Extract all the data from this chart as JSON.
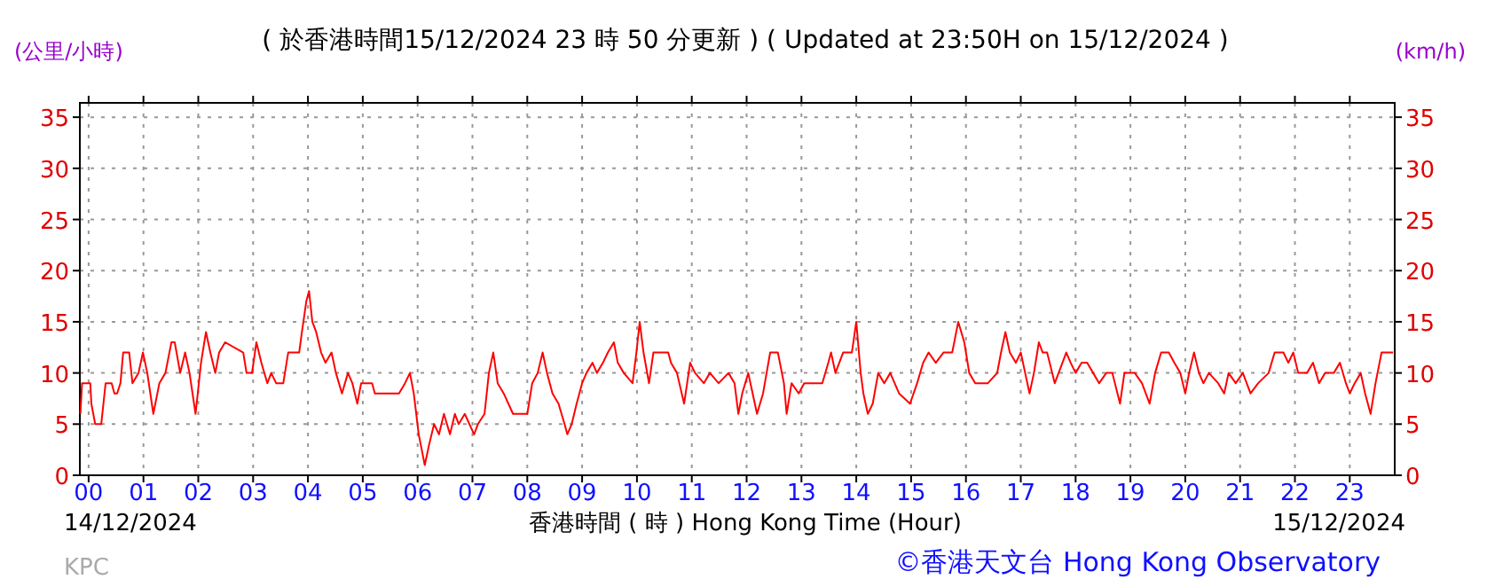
{
  "chart_data": {
    "type": "line",
    "title": "( 於香港時間15/12/2024 23 時 50 分更新 ) ( Updated at 23:50H on 15/12/2024 )",
    "xlabel": "香港時間 ( 時 ) Hong Kong Time (Hour)",
    "ylabel": "(公里/小時)",
    "y2label": "(km/h)",
    "annotations": [
      "14/12/2024",
      "15/12/2024",
      "KPC",
      "©香港天文台 Hong Kong Observatory"
    ],
    "color": "#ff0000",
    "x": [
      -0.15,
      -0.12,
      0.03,
      0.05,
      0.12,
      0.23,
      0.27,
      0.31,
      0.42,
      0.47,
      0.52,
      0.58,
      0.63,
      0.74,
      0.8,
      0.91,
      0.99,
      1.07,
      1.18,
      1.29,
      1.4,
      1.51,
      1.57,
      1.67,
      1.76,
      1.84,
      1.95,
      2.05,
      2.14,
      2.22,
      2.31,
      2.38,
      2.49,
      2.82,
      2.88,
      2.98,
      3.06,
      3.15,
      3.26,
      3.33,
      3.42,
      3.55,
      3.64,
      3.77,
      3.84,
      3.89,
      3.97,
      4.02,
      4.08,
      4.15,
      4.24,
      4.32,
      4.43,
      4.51,
      4.62,
      4.73,
      4.81,
      4.9,
      4.97,
      5.17,
      5.22,
      5.66,
      5.77,
      5.86,
      5.93,
      6.02,
      6.13,
      6.21,
      6.3,
      6.39,
      6.48,
      6.59,
      6.68,
      6.75,
      6.86,
      7.03,
      7.1,
      7.22,
      7.3,
      7.38,
      7.46,
      7.57,
      7.74,
      8.0,
      8.09,
      8.19,
      8.28,
      8.36,
      8.46,
      8.57,
      8.68,
      8.73,
      8.81,
      8.9,
      9.0,
      9.08,
      9.19,
      9.27,
      9.38,
      9.47,
      9.58,
      9.65,
      9.76,
      9.92,
      9.99,
      10.05,
      10.12,
      10.22,
      10.3,
      10.57,
      10.62,
      10.73,
      10.86,
      10.97,
      11.06,
      11.22,
      11.33,
      11.49,
      11.67,
      11.78,
      11.85,
      11.92,
      12.03,
      12.11,
      12.19,
      12.3,
      12.43,
      12.57,
      12.68,
      12.73,
      12.82,
      12.95,
      13.05,
      13.38,
      13.49,
      13.54,
      13.62,
      13.76,
      13.92,
      14.0,
      14.08,
      14.13,
      14.21,
      14.3,
      14.4,
      14.51,
      14.62,
      14.78,
      14.98,
      15.11,
      15.22,
      15.32,
      15.45,
      15.59,
      15.75,
      15.86,
      15.97,
      16.06,
      16.17,
      16.4,
      16.57,
      16.64,
      16.72,
      16.8,
      16.91,
      17.0,
      17.08,
      17.16,
      17.24,
      17.33,
      17.4,
      17.48,
      17.62,
      17.76,
      17.83,
      17.91,
      18.0,
      18.11,
      18.21,
      18.32,
      18.43,
      18.56,
      18.67,
      18.81,
      18.89,
      19.0,
      19.08,
      19.21,
      19.35,
      19.45,
      19.56,
      19.7,
      19.8,
      19.91,
      20.0,
      20.07,
      20.16,
      20.25,
      20.33,
      20.43,
      20.6,
      20.71,
      20.79,
      20.92,
      21.05,
      21.19,
      21.33,
      21.52,
      21.63,
      21.79,
      21.88,
      21.97,
      22.06,
      22.22,
      22.33,
      22.44,
      22.55,
      22.71,
      22.82,
      22.93,
      23.0,
      23.09,
      23.2,
      23.28,
      23.38,
      23.47,
      23.58,
      23.79
    ],
    "values": [
      6,
      9,
      9,
      7,
      5,
      5,
      7,
      9,
      9,
      8,
      8,
      9,
      12,
      12,
      9,
      10,
      12,
      10,
      6,
      9,
      10,
      13,
      13,
      10,
      12,
      10,
      6,
      11,
      14,
      12,
      10,
      12,
      13,
      12,
      10,
      10,
      13,
      11,
      9,
      10,
      9,
      9,
      12,
      12,
      12,
      14,
      17,
      18,
      15,
      14,
      12,
      11,
      12,
      10,
      8,
      10,
      9,
      7,
      9,
      9,
      8,
      8,
      9,
      10,
      8,
      4,
      1,
      3,
      5,
      4,
      6,
      4,
      6,
      5,
      6,
      4,
      5,
      6,
      10,
      12,
      9,
      8,
      6,
      6,
      9,
      10,
      12,
      10,
      8,
      7,
      5,
      4,
      5,
      7,
      9,
      10,
      11,
      10,
      11,
      12,
      13,
      11,
      10,
      9,
      12,
      15,
      12,
      9,
      12,
      12,
      11,
      10,
      7,
      11,
      10,
      9,
      10,
      9,
      10,
      9,
      6,
      8,
      10,
      8,
      6,
      8,
      12,
      12,
      9,
      6,
      9,
      8,
      9,
      9,
      11,
      12,
      10,
      12,
      12,
      15,
      10,
      8,
      6,
      7,
      10,
      9,
      10,
      8,
      7,
      9,
      11,
      12,
      11,
      12,
      12,
      15,
      13,
      10,
      9,
      9,
      10,
      12,
      14,
      12,
      11,
      12,
      10,
      8,
      10,
      13,
      12,
      12,
      9,
      11,
      12,
      11,
      10,
      11,
      11,
      10,
      9,
      10,
      10,
      7,
      10,
      10,
      10,
      9,
      7,
      10,
      12,
      12,
      11,
      10,
      8,
      10,
      12,
      10,
      9,
      10,
      9,
      8,
      10,
      9,
      10,
      8,
      9,
      10,
      12,
      12,
      11,
      12,
      10,
      10,
      11,
      9,
      10,
      10,
      11,
      9,
      8,
      9,
      10,
      8,
      6,
      9,
      12,
      12
    ],
    "xlim": [
      -0.16,
      23.82
    ],
    "xticks": [
      {
        "value": 0,
        "label": "00"
      },
      {
        "value": 1,
        "label": "01"
      },
      {
        "value": 2,
        "label": "02"
      },
      {
        "value": 3,
        "label": "03"
      },
      {
        "value": 4,
        "label": "04"
      },
      {
        "value": 5,
        "label": "05"
      },
      {
        "value": 6,
        "label": "06"
      },
      {
        "value": 7,
        "label": "07"
      },
      {
        "value": 8,
        "label": "08"
      },
      {
        "value": 9,
        "label": "09"
      },
      10,
      11,
      12,
      13,
      14,
      15,
      16,
      17,
      18,
      19,
      20,
      21,
      22,
      23
    ],
    "ylim": [
      0,
      36.4
    ],
    "yticks": [
      0,
      5,
      10,
      15,
      20,
      25,
      30,
      35
    ],
    "y2lim": [
      0,
      36.4
    ],
    "y2ticks": [
      0,
      5,
      10,
      15,
      20,
      25,
      30,
      35
    ],
    "grid": true
  }
}
